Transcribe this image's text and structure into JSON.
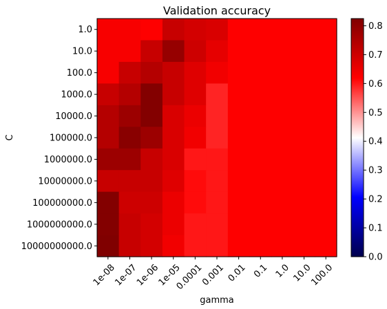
{
  "chart_data": {
    "type": "heatmap",
    "title": "Validation accuracy",
    "xlabel": "gamma",
    "ylabel": "C",
    "x_categories": [
      "1e-08",
      "1e-07",
      "1e-06",
      "1e-05",
      "0.0001",
      "0.001",
      "0.01",
      "0.1",
      "1.0",
      "10.0",
      "100.0"
    ],
    "y_categories": [
      "1.0",
      "10.0",
      "100.0",
      "1000.0",
      "10000.0",
      "100000.0",
      "1000000.0",
      "10000000.0",
      "100000000.0",
      "1000000000.0",
      "10000000000.0"
    ],
    "values": [
      [
        0.63,
        0.63,
        0.62,
        0.71,
        0.69,
        0.68,
        0.62,
        0.62,
        0.62,
        0.62,
        0.62
      ],
      [
        0.63,
        0.63,
        0.71,
        0.79,
        0.7,
        0.66,
        0.62,
        0.62,
        0.62,
        0.62,
        0.62
      ],
      [
        0.63,
        0.71,
        0.74,
        0.71,
        0.67,
        0.64,
        0.62,
        0.62,
        0.62,
        0.62,
        0.62
      ],
      [
        0.71,
        0.74,
        0.82,
        0.71,
        0.67,
        0.59,
        0.62,
        0.62,
        0.62,
        0.62,
        0.62
      ],
      [
        0.74,
        0.78,
        0.82,
        0.68,
        0.65,
        0.59,
        0.62,
        0.62,
        0.62,
        0.62,
        0.62
      ],
      [
        0.74,
        0.81,
        0.78,
        0.68,
        0.64,
        0.59,
        0.62,
        0.62,
        0.62,
        0.62,
        0.62
      ],
      [
        0.78,
        0.78,
        0.71,
        0.68,
        0.6,
        0.6,
        0.62,
        0.62,
        0.62,
        0.62,
        0.62
      ],
      [
        0.71,
        0.71,
        0.71,
        0.67,
        0.61,
        0.6,
        0.62,
        0.62,
        0.62,
        0.62,
        0.62
      ],
      [
        0.82,
        0.7,
        0.7,
        0.65,
        0.61,
        0.6,
        0.62,
        0.62,
        0.62,
        0.62,
        0.62
      ],
      [
        0.82,
        0.71,
        0.69,
        0.65,
        0.6,
        0.6,
        0.62,
        0.62,
        0.62,
        0.62,
        0.62
      ],
      [
        0.83,
        0.71,
        0.69,
        0.64,
        0.6,
        0.6,
        0.62,
        0.62,
        0.62,
        0.62,
        0.62
      ]
    ],
    "colormap": "seismic",
    "colorbar": {
      "vmin": 0.0,
      "vmax": 0.825,
      "ticks": [
        "0.0",
        "0.1",
        "0.2",
        "0.3",
        "0.4",
        "0.5",
        "0.6",
        "0.7",
        "0.8"
      ]
    },
    "grid": false,
    "legend": "colorbar-right"
  }
}
